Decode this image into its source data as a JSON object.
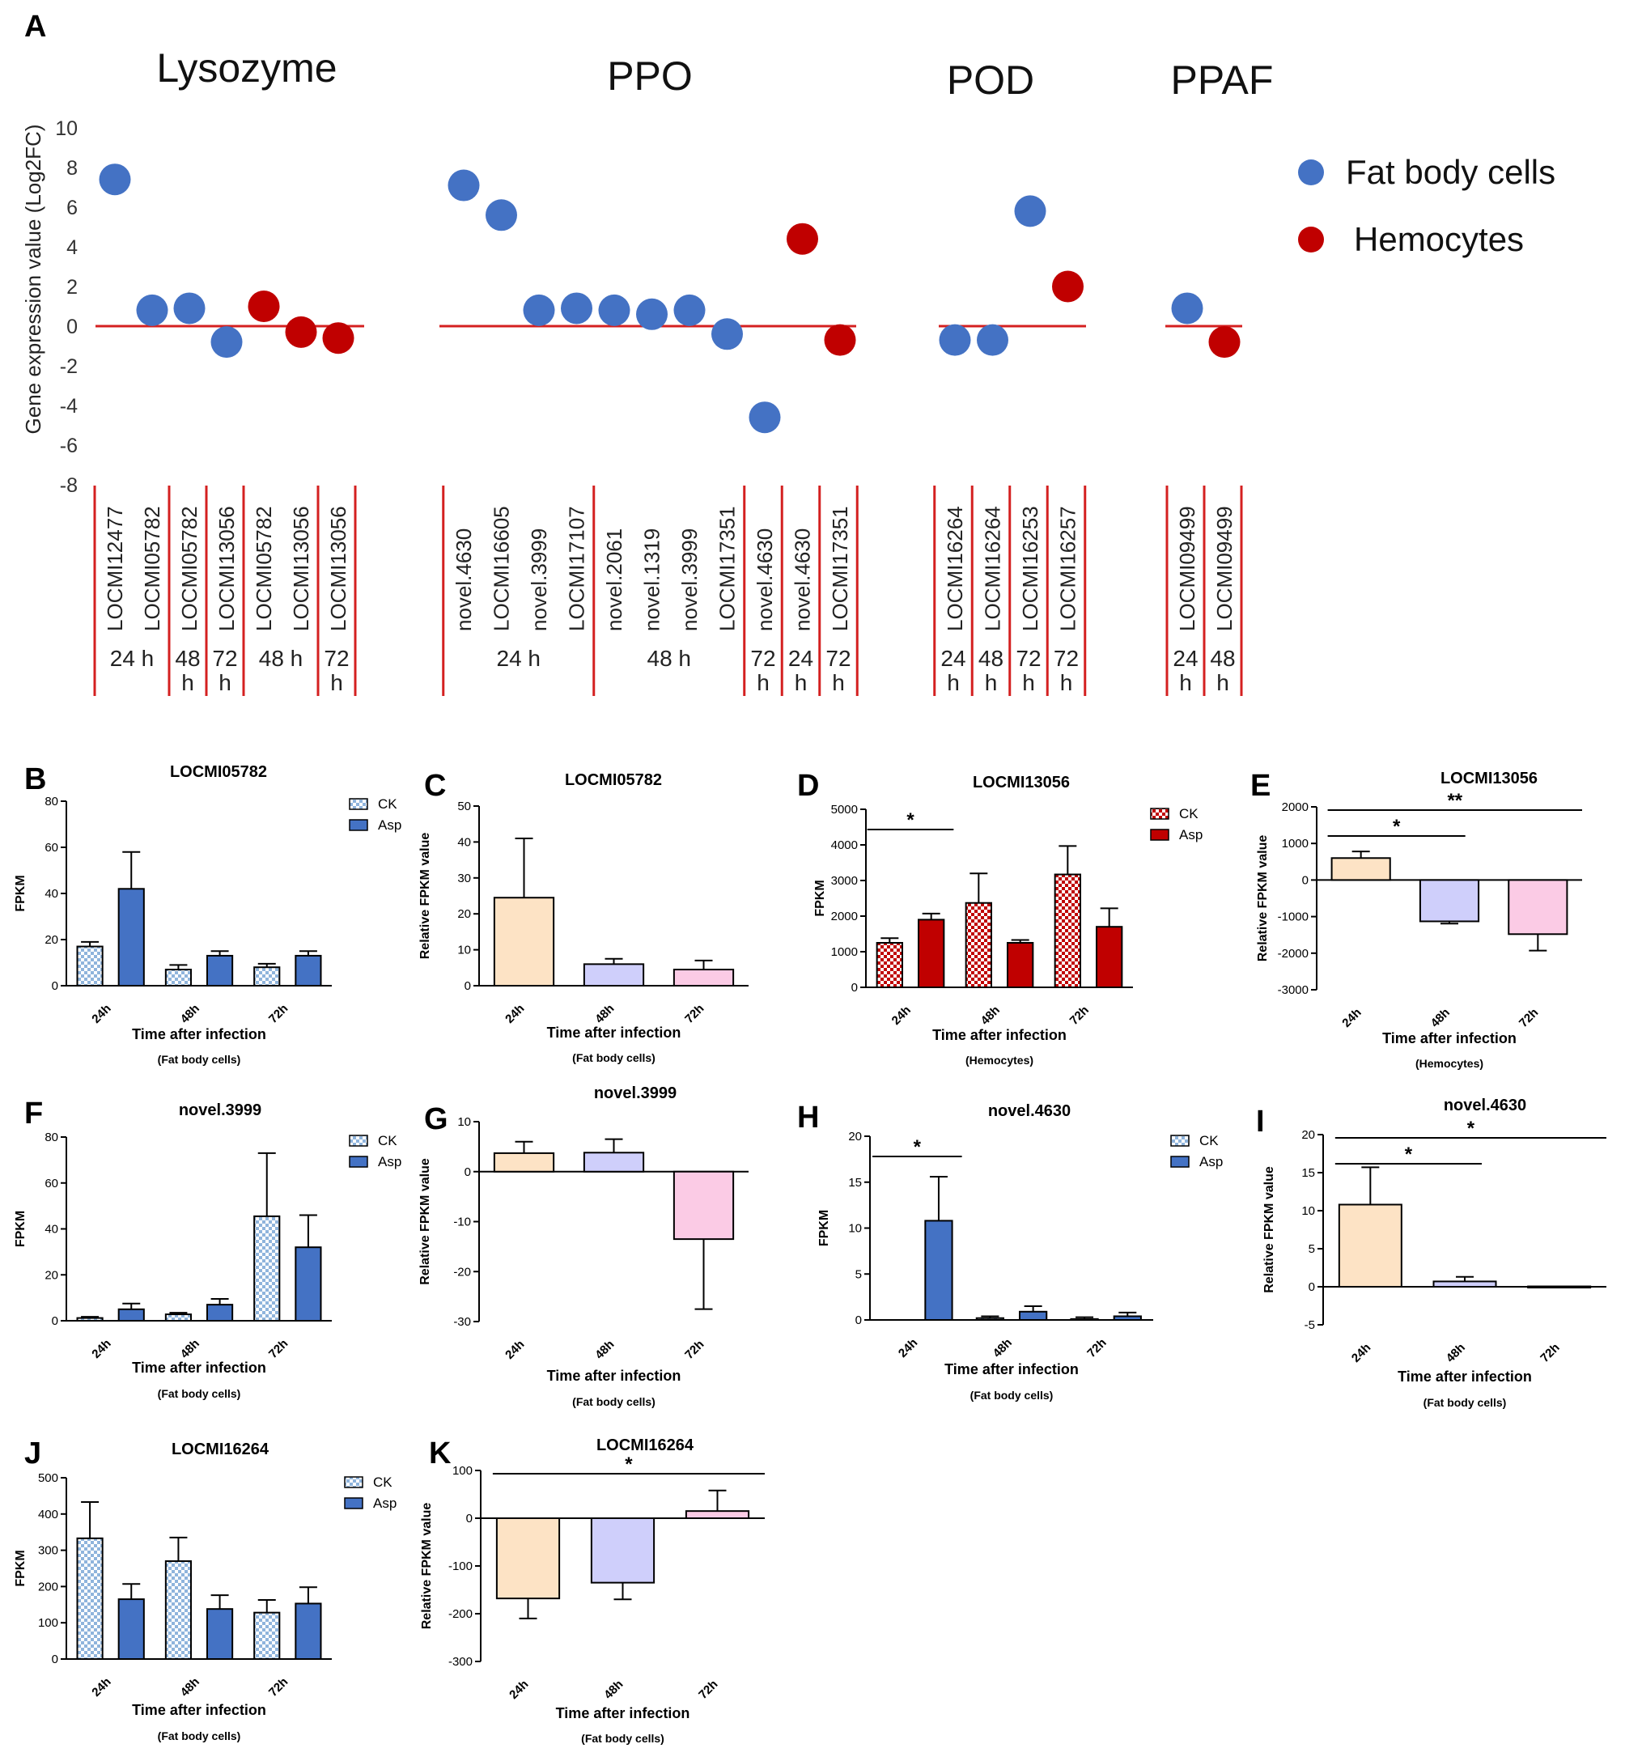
{
  "figure": {
    "panel_a": {
      "label": "A",
      "ylabel": "Gene expression value (Log2FC)",
      "yticks": [
        "10",
        "8",
        "6",
        "4",
        "2",
        "0",
        "-2",
        "-4",
        "-6",
        "-8"
      ],
      "ylim": [
        -8,
        10
      ],
      "groups": [
        {
          "name": "Lysozyme",
          "genes": [
            "LOCMI12477",
            "LOCMI05782",
            "LOCMI05782",
            "LOCMI13056",
            "LOCMI05782",
            "LOCMI13056",
            "LOCMI13056"
          ],
          "times": [
            {
              "label": "24 h",
              "span": [
                0,
                1
              ]
            },
            {
              "label": "48 h",
              "span": [
                2,
                2
              ]
            },
            {
              "label": "72 h",
              "span": [
                3,
                3
              ]
            },
            {
              "label": "48 h",
              "span": [
                4,
                5
              ]
            },
            {
              "label": "72 h",
              "span": [
                6,
                6
              ]
            }
          ],
          "points": [
            7.4,
            0.8,
            0.9,
            -0.8,
            1.0,
            -0.3,
            -0.6
          ],
          "cell": [
            "Fat body cells",
            "Fat body cells",
            "Fat body cells",
            "Fat body cells",
            "Hemocytes",
            "Hemocytes",
            "Hemocytes"
          ]
        },
        {
          "name": "PPO",
          "genes": [
            "novel.4630",
            "LOCMI16605",
            "novel.3999",
            "LOCMI17107",
            "novel.2061",
            "novel.1319",
            "novel.3999",
            "LOCMI17351",
            "novel.4630",
            "novel.4630",
            "LOCMI17351"
          ],
          "times": [
            {
              "label": "24 h",
              "span": [
                0,
                3
              ]
            },
            {
              "label": "48 h",
              "span": [
                4,
                7
              ]
            },
            {
              "label": "72 h",
              "span": [
                8,
                8
              ]
            },
            {
              "label": "24 h",
              "span": [
                9,
                9
              ]
            },
            {
              "label": "72 h",
              "span": [
                10,
                10
              ]
            }
          ],
          "points": [
            7.1,
            5.6,
            0.8,
            0.9,
            0.8,
            0.6,
            0.8,
            -0.4,
            -4.6,
            4.4,
            -0.7
          ],
          "cell": [
            "Fat body cells",
            "Fat body cells",
            "Fat body cells",
            "Fat body cells",
            "Fat body cells",
            "Fat body cells",
            "Fat body cells",
            "Fat body cells",
            "Fat body cells",
            "Hemocytes",
            "Hemocytes"
          ]
        },
        {
          "name": "POD",
          "genes": [
            "LOCMI16264",
            "LOCMI16264",
            "LOCMI16253",
            "LOCMI16257"
          ],
          "times": [
            {
              "label": "24 h",
              "span": [
                0,
                0
              ]
            },
            {
              "label": "48 h",
              "span": [
                1,
                1
              ]
            },
            {
              "label": "72 h",
              "span": [
                2,
                2
              ]
            },
            {
              "label": "72 h",
              "span": [
                3,
                3
              ]
            }
          ],
          "points": [
            -0.7,
            -0.7,
            5.8,
            2.0
          ],
          "cell": [
            "Fat body cells",
            "Fat body cells",
            "Fat body cells",
            "Hemocytes"
          ]
        },
        {
          "name": "PPAF",
          "genes": [
            "LOCMI09499",
            "LOCMI09499"
          ],
          "times": [
            {
              "label": "24 h",
              "span": [
                0,
                0
              ]
            },
            {
              "label": "48 h",
              "span": [
                1,
                1
              ]
            }
          ],
          "points": [
            0.9,
            -0.8
          ],
          "cell": [
            "Fat body cells",
            "Hemocytes"
          ]
        }
      ],
      "legend": [
        {
          "label": "Fat body cells",
          "color": "#4472C4"
        },
        {
          "label": "Hemocytes",
          "color": "#C00000"
        }
      ]
    },
    "panels": [
      {
        "label": "B",
        "title": "LOCMI05782",
        "type": "grouped",
        "ylabel": "FPKM",
        "yticks": [
          "80",
          "60",
          "40",
          "20",
          "0"
        ],
        "ylim": [
          0,
          80
        ],
        "xcats": [
          "24h",
          "48h",
          "72h"
        ],
        "xlabel": "Time after infection",
        "sub": "(Fat body cells)",
        "color": "#4472C4",
        "series": [
          "CK",
          "Asp"
        ],
        "ck": [
          17,
          7,
          8
        ],
        "ck_err": [
          2,
          2,
          1.5
        ],
        "asp": [
          42,
          13,
          13
        ],
        "asp_err": [
          16,
          2,
          2
        ]
      },
      {
        "label": "C",
        "title": "LOCMI05782",
        "type": "relative",
        "ylabel": "Relative FPKM value",
        "yticks": [
          "50",
          "40",
          "30",
          "20",
          "10",
          "0"
        ],
        "ylim": [
          0,
          50
        ],
        "xcats": [
          "24h",
          "48h",
          "72h"
        ],
        "xlabel": "Time after infection",
        "sub": "(Fat body cells)",
        "values": [
          24.5,
          6,
          4.5
        ],
        "errs": [
          16.5,
          1.5,
          2.5
        ]
      },
      {
        "label": "D",
        "title": "LOCMI13056",
        "type": "grouped",
        "ylabel": "FPKM",
        "yticks": [
          "5000",
          "4000",
          "3000",
          "2000",
          "1000",
          "0"
        ],
        "ylim": [
          0,
          5000
        ],
        "xcats": [
          "24h",
          "48h",
          "72h"
        ],
        "xlabel": "Time after infection",
        "sub": "(Hemocytes)",
        "color": "#C00000",
        "series": [
          "CK",
          "Asp"
        ],
        "ck": [
          1250,
          2370,
          3170
        ],
        "ck_err": [
          130,
          830,
          800
        ],
        "asp": [
          1900,
          1250,
          1700
        ],
        "asp_err": [
          170,
          80,
          520
        ],
        "stars": [
          {
            "text": "*",
            "from": 0,
            "to": 0
          }
        ]
      },
      {
        "label": "E",
        "title": "LOCMI13056",
        "type": "relative",
        "ylabel": "Relative FPKM value",
        "yticks": [
          "2000",
          "1000",
          "0",
          "-1000",
          "-2000",
          "-3000"
        ],
        "ylim": [
          -3000,
          2000
        ],
        "xcats": [
          "24h",
          "48h",
          "72h"
        ],
        "xlabel": "Time after infection",
        "sub": "(Hemocytes)",
        "values": [
          600,
          -1130,
          -1480
        ],
        "errs": [
          180,
          60,
          450
        ],
        "stars": [
          {
            "text": "*",
            "from": 0,
            "to": 1
          },
          {
            "text": "**",
            "from": 0,
            "to": 2
          }
        ]
      },
      {
        "label": "F",
        "title": "novel.3999",
        "type": "grouped",
        "ylabel": "FPKM",
        "yticks": [
          "80",
          "60",
          "40",
          "20",
          "0"
        ],
        "ylim": [
          0,
          80
        ],
        "xcats": [
          "24h",
          "48h",
          "72h"
        ],
        "xlabel": "Time after infection",
        "sub": "(Fat body cells)",
        "color": "#4472C4",
        "series": [
          "CK",
          "Asp"
        ],
        "ck": [
          1.2,
          2.8,
          45.5
        ],
        "ck_err": [
          0.5,
          0.7,
          27.5
        ],
        "asp": [
          5,
          7,
          32
        ],
        "asp_err": [
          2.5,
          2.5,
          14
        ]
      },
      {
        "label": "G",
        "title": "novel.3999",
        "type": "relative",
        "ylabel": "Relative FPKM value",
        "yticks": [
          "10",
          "0",
          "-10",
          "-20",
          "-30"
        ],
        "ylim": [
          -30,
          10
        ],
        "xcats": [
          "24h",
          "48h",
          "72h"
        ],
        "xlabel": "Time after infection",
        "sub": "(Fat body cells)",
        "values": [
          3.7,
          3.8,
          -13.5
        ],
        "errs": [
          2.3,
          2.7,
          14
        ]
      },
      {
        "label": "H",
        "title": "novel.4630",
        "type": "grouped",
        "ylabel": "FPKM",
        "yticks": [
          "20",
          "15",
          "10",
          "5",
          "0"
        ],
        "ylim": [
          0,
          20
        ],
        "xcats": [
          "24h",
          "48h",
          "72h"
        ],
        "xlabel": "Time after infection",
        "sub": "(Fat body cells)",
        "color": "#4472C4",
        "series": [
          "CK",
          "Asp"
        ],
        "ck": [
          0,
          0.2,
          0.1
        ],
        "ck_err": [
          0,
          0.2,
          0.2
        ],
        "asp": [
          10.8,
          0.9,
          0.4
        ],
        "asp_err": [
          4.8,
          0.6,
          0.4
        ],
        "stars": [
          {
            "text": "*",
            "from": 0,
            "to": 0
          }
        ]
      },
      {
        "label": "I",
        "title": "novel.4630",
        "type": "relative",
        "ylabel": "Relative FPKM value",
        "yticks": [
          "20",
          "15",
          "10",
          "5",
          "0",
          "-5"
        ],
        "ylim": [
          -5,
          20
        ],
        "xcats": [
          "24h",
          "48h",
          "72h"
        ],
        "xlabel": "Time after infection",
        "sub": "(Fat body cells)",
        "values": [
          10.8,
          0.7,
          0.05
        ],
        "errs": [
          4.9,
          0.6,
          0
        ],
        "stars": [
          {
            "text": "*",
            "from": 0,
            "to": 1
          },
          {
            "text": "*",
            "from": 0,
            "to": 2
          }
        ]
      },
      {
        "label": "J",
        "title": "LOCMI16264",
        "type": "grouped",
        "ylabel": "FPKM",
        "yticks": [
          "500",
          "400",
          "300",
          "200",
          "100",
          "0"
        ],
        "ylim": [
          0,
          500
        ],
        "xcats": [
          "24h",
          "48h",
          "72h"
        ],
        "xlabel": "Time after infection",
        "sub": "(Fat body cells)",
        "color": "#4472C4",
        "series": [
          "CK",
          "Asp"
        ],
        "ck": [
          333,
          270,
          128
        ],
        "ck_err": [
          100,
          65,
          35
        ],
        "asp": [
          165,
          138,
          153
        ],
        "asp_err": [
          42,
          38,
          45
        ]
      },
      {
        "label": "K",
        "title": "LOCMI16264",
        "type": "relative",
        "ylabel": "Relative FPKM value",
        "yticks": [
          "100",
          "0",
          "-100",
          "-200",
          "-300"
        ],
        "ylim": [
          -300,
          100
        ],
        "xcats": [
          "24h",
          "48h",
          "72h"
        ],
        "xlabel": "Time after infection",
        "sub": "(Fat body cells)",
        "values": [
          -168,
          -135,
          15
        ],
        "errs": [
          42,
          35,
          43
        ],
        "stars": [
          {
            "text": "*",
            "from": 0,
            "to": 2
          }
        ]
      }
    ],
    "relative_colors": [
      "#FDE3C5",
      "#CFCFFB",
      "#FBCBE5"
    ]
  },
  "chart_data": [
    {
      "type": "scatter",
      "title": "A",
      "ylabel": "Gene expression value (Log2FC)",
      "ylim": [
        -8,
        10
      ],
      "series": [
        {
          "name": "Lysozyme",
          "x": [
            "LOCMI12477 24 h",
            "LOCMI05782 24 h",
            "LOCMI05782 48 h",
            "LOCMI13056 72 h",
            "LOCMI05782 48 h",
            "LOCMI13056 48 h",
            "LOCMI13056 72 h"
          ],
          "values": [
            7.4,
            0.8,
            0.9,
            -0.8,
            1.0,
            -0.3,
            -0.6
          ]
        },
        {
          "name": "PPO",
          "x": [
            "novel.4630 24 h",
            "LOCMI16605 24 h",
            "novel.3999 24 h",
            "LOCMI17107 24 h",
            "novel.2061 48 h",
            "novel.1319 48 h",
            "novel.3999 48 h",
            "LOCMI17351 48 h",
            "novel.4630 72 h",
            "novel.4630 24 h",
            "LOCMI17351 72 h"
          ],
          "values": [
            7.1,
            5.6,
            0.8,
            0.9,
            0.8,
            0.6,
            0.8,
            -0.4,
            -4.6,
            4.4,
            -0.7
          ]
        },
        {
          "name": "POD",
          "x": [
            "LOCMI16264 24 h",
            "LOCMI16264 48 h",
            "LOCMI16253 72 h",
            "LOCMI16257 72 h"
          ],
          "values": [
            -0.7,
            -0.7,
            5.8,
            2.0
          ]
        },
        {
          "name": "PPAF",
          "x": [
            "LOCMI09499 24 h",
            "LOCMI09499 48 h"
          ],
          "values": [
            0.9,
            -0.8
          ]
        }
      ]
    },
    {
      "type": "bar",
      "title": "B LOCMI05782",
      "categories": [
        "24h",
        "48h",
        "72h"
      ],
      "series": [
        {
          "name": "CK",
          "values": [
            17,
            7,
            8
          ]
        },
        {
          "name": "Asp",
          "values": [
            42,
            13,
            13
          ]
        }
      ],
      "ylabel": "FPKM",
      "ylim": [
        0,
        80
      ]
    },
    {
      "type": "bar",
      "title": "C LOCMI05782",
      "categories": [
        "24h",
        "48h",
        "72h"
      ],
      "values": [
        24.5,
        6,
        4.5
      ],
      "ylabel": "Relative FPKM value",
      "ylim": [
        0,
        50
      ]
    },
    {
      "type": "bar",
      "title": "D LOCMI13056",
      "categories": [
        "24h",
        "48h",
        "72h"
      ],
      "series": [
        {
          "name": "CK",
          "values": [
            1250,
            2370,
            3170
          ]
        },
        {
          "name": "Asp",
          "values": [
            1900,
            1250,
            1700
          ]
        }
      ],
      "ylabel": "FPKM",
      "ylim": [
        0,
        5000
      ]
    },
    {
      "type": "bar",
      "title": "E LOCMI13056",
      "categories": [
        "24h",
        "48h",
        "72h"
      ],
      "values": [
        600,
        -1130,
        -1480
      ],
      "ylabel": "Relative FPKM value",
      "ylim": [
        -3000,
        2000
      ]
    },
    {
      "type": "bar",
      "title": "F novel.3999",
      "categories": [
        "24h",
        "48h",
        "72h"
      ],
      "series": [
        {
          "name": "CK",
          "values": [
            1.2,
            2.8,
            45.5
          ]
        },
        {
          "name": "Asp",
          "values": [
            5,
            7,
            32
          ]
        }
      ],
      "ylabel": "FPKM",
      "ylim": [
        0,
        80
      ]
    },
    {
      "type": "bar",
      "title": "G novel.3999",
      "categories": [
        "24h",
        "48h",
        "72h"
      ],
      "values": [
        3.7,
        3.8,
        -13.5
      ],
      "ylabel": "Relative FPKM value",
      "ylim": [
        -30,
        10
      ]
    },
    {
      "type": "bar",
      "title": "H novel.4630",
      "categories": [
        "24h",
        "48h",
        "72h"
      ],
      "series": [
        {
          "name": "CK",
          "values": [
            0,
            0.2,
            0.1
          ]
        },
        {
          "name": "Asp",
          "values": [
            10.8,
            0.9,
            0.4
          ]
        }
      ],
      "ylabel": "FPKM",
      "ylim": [
        0,
        20
      ]
    },
    {
      "type": "bar",
      "title": "I novel.4630",
      "categories": [
        "24h",
        "48h",
        "72h"
      ],
      "values": [
        10.8,
        0.7,
        0.05
      ],
      "ylabel": "Relative FPKM value",
      "ylim": [
        -5,
        20
      ]
    },
    {
      "type": "bar",
      "title": "J LOCMI16264",
      "categories": [
        "24h",
        "48h",
        "72h"
      ],
      "series": [
        {
          "name": "CK",
          "values": [
            333,
            270,
            128
          ]
        },
        {
          "name": "Asp",
          "values": [
            165,
            138,
            153
          ]
        }
      ],
      "ylabel": "FPKM",
      "ylim": [
        0,
        500
      ]
    },
    {
      "type": "bar",
      "title": "K LOCMI16264",
      "categories": [
        "24h",
        "48h",
        "72h"
      ],
      "values": [
        -168,
        -135,
        15
      ],
      "ylabel": "Relative FPKM value",
      "ylim": [
        -300,
        100
      ]
    }
  ]
}
